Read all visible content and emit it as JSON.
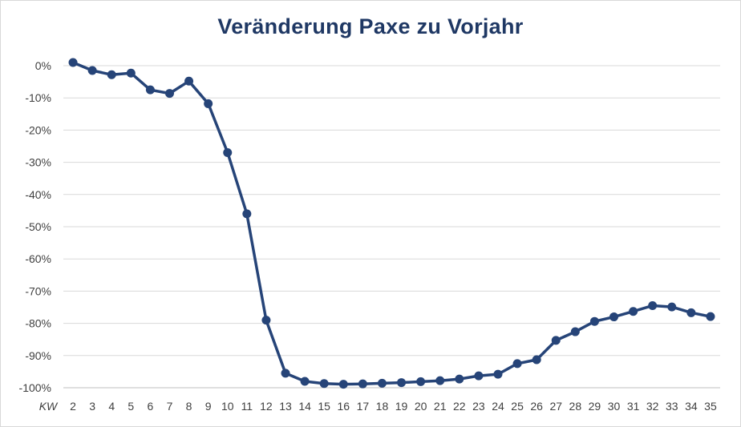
{
  "chart_data": {
    "type": "line",
    "title": "Veränderung Paxe zu Vorjahr",
    "xlabel": "KW",
    "ylabel": "",
    "x": [
      "2",
      "3",
      "4",
      "5",
      "6",
      "7",
      "8",
      "9",
      "10",
      "11",
      "12",
      "13",
      "14",
      "15",
      "16",
      "17",
      "18",
      "19",
      "20",
      "21",
      "22",
      "23",
      "24",
      "25",
      "26",
      "27",
      "28",
      "29",
      "30",
      "31",
      "32",
      "33",
      "34",
      "35"
    ],
    "series": [
      {
        "values": [
          1,
          -1.5,
          -2.8,
          -2.3,
          -7.5,
          -8.6,
          -4.8,
          -11.8,
          -27,
          -46,
          -79,
          -95.5,
          -98,
          -98.7,
          -98.9,
          -98.8,
          -98.6,
          -98.4,
          -98.1,
          -97.8,
          -97.3,
          -96.3,
          -95.8,
          -92.5,
          -91.3,
          -85.3,
          -82.6,
          -79.4,
          -78,
          -76.3,
          -74.5,
          -74.9,
          -76.7,
          -77.9
        ]
      }
    ],
    "ylim": [
      -100,
      0
    ],
    "yticks": [
      0,
      -10,
      -20,
      -30,
      -40,
      -50,
      -60,
      -70,
      -80,
      -90,
      -100
    ],
    "ytick_labels": [
      "0%",
      "-10%",
      "-20%",
      "-30%",
      "-40%",
      "-50%",
      "-60%",
      "-70%",
      "-80%",
      "-90%",
      "-100%"
    ],
    "grid": "horizontal",
    "legend": "none",
    "colors": {
      "line": "#264478",
      "title": "#1f3864",
      "grid": "#d9d9d9",
      "axis": "#bfbfbf",
      "text": "#404040"
    }
  }
}
